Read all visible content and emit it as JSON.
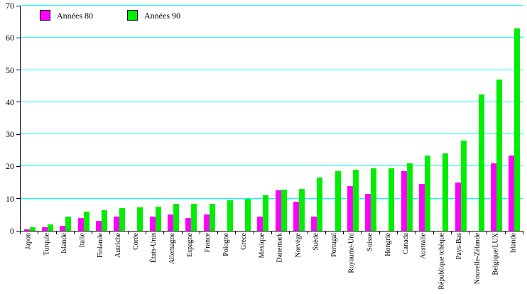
{
  "chart_data": {
    "type": "bar",
    "title": "",
    "xlabel": "",
    "ylabel": "",
    "categories": [
      "Japon",
      "Turquie",
      "Islande",
      "Italie",
      "Finlande",
      "Autriche",
      "Corée",
      "États-Unis",
      "Allemagne",
      "Espagne",
      "France",
      "Pologne",
      "Grèce",
      "Mexique",
      "Danemark",
      "Norvège",
      "Suède",
      "Portugal",
      "Royaume-Uni",
      "Suisse",
      "Hongrie",
      "Canada",
      "Australie",
      "République tchèque",
      "Pays-Bas",
      "Nouvelle-Zélande",
      "Belgique/LUX",
      "Irlande"
    ],
    "series": [
      {
        "name": "Années 80",
        "color": "#FF00FF",
        "values": [
          0.5,
          1,
          1.5,
          4,
          3,
          4.5,
          0,
          4.5,
          5,
          4,
          5,
          0,
          0,
          4.5,
          12.5,
          9,
          4.5,
          0,
          14,
          11.5,
          0,
          18.5,
          14.5,
          0,
          15,
          0,
          21,
          23.5
        ]
      },
      {
        "name": "Années 90",
        "color": "#00EE00",
        "values": [
          1,
          2,
          4.5,
          6,
          6.5,
          7,
          7.2,
          7.5,
          8.5,
          8.5,
          8.5,
          9.5,
          10,
          11,
          12.8,
          13,
          16.5,
          18.5,
          19,
          19.5,
          19.5,
          21,
          23.5,
          24,
          28,
          42.5,
          47,
          63
        ]
      }
    ],
    "ylim": [
      0,
      70
    ],
    "yticks": [
      0,
      10,
      20,
      30,
      40,
      50,
      60,
      70
    ],
    "grid": true,
    "gridline_color": "#00FFFF",
    "legend_position": "top-left"
  }
}
